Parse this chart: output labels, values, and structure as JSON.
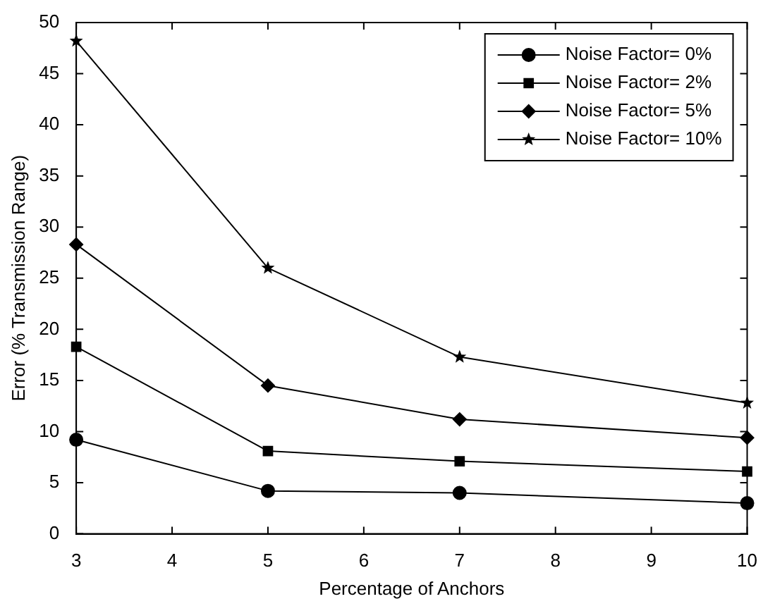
{
  "chart_data": {
    "type": "line",
    "xlabel": "Percentage of Anchors",
    "ylabel": "Error (% Transmission Range)",
    "x": [
      3,
      5,
      7,
      10
    ],
    "series": [
      {
        "name": "Noise Factor= 0%",
        "color": "#000000",
        "marker": "circle",
        "values": [
          9.2,
          4.2,
          4.0,
          3.0
        ]
      },
      {
        "name": "Noise Factor= 2%",
        "color": "#000000",
        "marker": "square",
        "values": [
          18.3,
          8.1,
          7.1,
          6.1
        ]
      },
      {
        "name": "Noise Factor= 5%",
        "color": "#000000",
        "marker": "diamond",
        "values": [
          28.3,
          14.5,
          11.2,
          9.4
        ]
      },
      {
        "name": "Noise Factor= 10%",
        "color": "#000000",
        "marker": "star",
        "values": [
          48.2,
          26.0,
          17.3,
          12.8
        ]
      }
    ],
    "xlim": [
      3,
      10
    ],
    "xticks": [
      3,
      4,
      5,
      6,
      7,
      8,
      9,
      10
    ],
    "ylim": [
      0,
      50
    ],
    "yticks": [
      0,
      5,
      10,
      15,
      20,
      25,
      30,
      35,
      40,
      45,
      50
    ],
    "grid": false,
    "legend": "top right",
    "line_style": "solid"
  }
}
